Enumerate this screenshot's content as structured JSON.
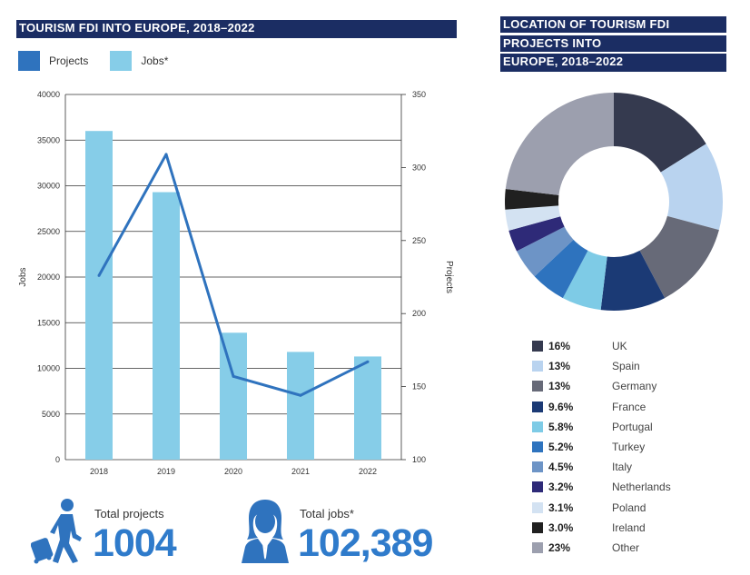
{
  "left_title": "TOURISM FDI INTO EUROPE, 2018–2022",
  "right_title_lines": [
    "LOCATION OF TOURISM FDI",
    "PROJECTS INTO",
    "EUROPE, 2018–2022"
  ],
  "colors": {
    "title_bg": "#1b2d63",
    "projects": "#2f73be",
    "jobs": "#86cde8",
    "totals_text": "#2f7bcb",
    "icon": "#2f73be"
  },
  "totals": {
    "projects_label": "Total projects",
    "projects_value": "1004",
    "jobs_label": "Total jobs*",
    "jobs_value": "102,389",
    "projects_icon": "traveler-with-suitcase-icon",
    "jobs_icon": "businesswoman-icon"
  },
  "chart_data": [
    {
      "type": "bar",
      "categories": [
        "2018",
        "2019",
        "2020",
        "2021",
        "2022"
      ],
      "legend": [
        "Projects",
        "Jobs*"
      ],
      "series": [
        {
          "name": "Jobs*",
          "kind": "bar",
          "axis": "left",
          "values": [
            36000,
            29300,
            13900,
            11800,
            11300
          ]
        },
        {
          "name": "Projects",
          "kind": "line",
          "axis": "right",
          "values": [
            226,
            309,
            157,
            144,
            167
          ]
        }
      ],
      "ylabel": "Jobs",
      "y2label": "Projects",
      "ylim": [
        0,
        40000
      ],
      "y2lim": [
        100,
        350
      ],
      "yticks": [
        "0",
        "5000",
        "10000",
        "15000",
        "20000",
        "25000",
        "30000",
        "35000",
        "40000"
      ],
      "y2ticks": [
        "100",
        "150",
        "200",
        "250",
        "300",
        "350"
      ],
      "grid": true
    },
    {
      "type": "pie",
      "donut": true,
      "slices": [
        {
          "label": "UK",
          "pct": "16%",
          "value": 16,
          "color": "#353a4f"
        },
        {
          "label": "Spain",
          "pct": "13%",
          "value": 13,
          "color": "#b9d3ef"
        },
        {
          "label": "Germany",
          "pct": "13%",
          "value": 13,
          "color": "#676a78"
        },
        {
          "label": "France",
          "pct": "9.6%",
          "value": 9.6,
          "color": "#1b3a75"
        },
        {
          "label": "Portugal",
          "pct": "5.8%",
          "value": 5.8,
          "color": "#7ecbe6"
        },
        {
          "label": "Turkey",
          "pct": "5.2%",
          "value": 5.2,
          "color": "#2e73be"
        },
        {
          "label": "Italy",
          "pct": "4.5%",
          "value": 4.5,
          "color": "#6d94c6"
        },
        {
          "label": "Netherlands",
          "pct": "3.2%",
          "value": 3.2,
          "color": "#2e2a78"
        },
        {
          "label": "Poland",
          "pct": "3.1%",
          "value": 3.1,
          "color": "#d3e2f2"
        },
        {
          "label": "Ireland",
          "pct": "3.0%",
          "value": 3.0,
          "color": "#202020"
        },
        {
          "label": "Other",
          "pct": "23%",
          "value": 23,
          "color": "#9c9fae"
        }
      ]
    }
  ]
}
